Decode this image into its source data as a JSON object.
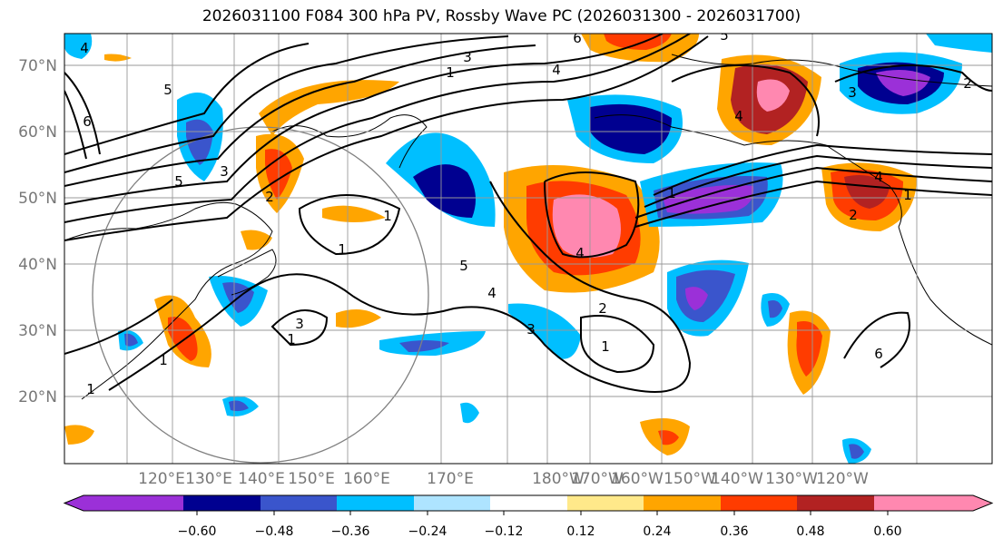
{
  "title": "2026031100 F084 300 hPa PV, Rossby Wave PC (2026031300 - 2026031700)",
  "map": {
    "lat_ticks": [
      "70°N",
      "60°N",
      "50°N",
      "40°N",
      "30°N",
      "20°N"
    ],
    "lon_ticks": [
      "120°E",
      "130°E",
      "140°E",
      "150°E",
      "160°E",
      "170°E",
      "180°W",
      "170°W",
      "160°W",
      "150°W",
      "140°W",
      "130°W",
      "120°W"
    ],
    "contour_labels": [
      "4",
      "5",
      "6",
      "5",
      "3",
      "2",
      "3",
      "4",
      "1",
      "6",
      "5",
      "4",
      "3",
      "2",
      "1",
      "1",
      "5",
      "4",
      "3",
      "2",
      "1",
      "4",
      "3",
      "1",
      "1",
      "1",
      "6",
      "4",
      "2",
      "1",
      "1"
    ]
  },
  "colorbar": {
    "colors": [
      "#9b30d8",
      "#000090",
      "#3a55cc",
      "#00bfff",
      "#aee4ff",
      "#ffffff",
      "#ffe98a",
      "#ffa500",
      "#ff3c00",
      "#b22222",
      "#ff88b0"
    ],
    "tick_labels": [
      "−0.60",
      "−0.48",
      "−0.36",
      "−0.24",
      "−0.12",
      "0.12",
      "0.24",
      "0.36",
      "0.48",
      "0.60"
    ]
  }
}
